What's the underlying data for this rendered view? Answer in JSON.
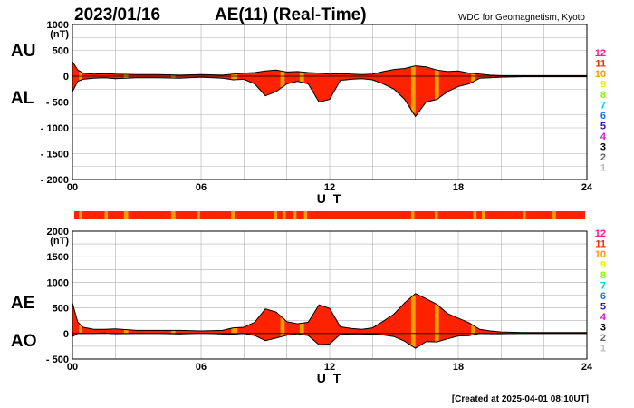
{
  "header": {
    "date": "2023/01/16",
    "title": "AE(11) (Real-Time)",
    "source": "WDC for Geomagnetism, Kyoto"
  },
  "footer": {
    "created": "[Created at 2025-04-01 08:10UT]"
  },
  "station_scale": {
    "labels": [
      "12",
      "11",
      "10",
      "9",
      "8",
      "7",
      "6",
      "5",
      "4",
      "3",
      "2",
      "1"
    ],
    "colors": [
      "#ff1493",
      "#ff2a00",
      "#ff9900",
      "#eeee00",
      "#7cfc00",
      "#00ced1",
      "#1e6fff",
      "#3311cc",
      "#cc22cc",
      "#000000",
      "#666666",
      "#bbbbbb"
    ]
  },
  "colors": {
    "fill_11": "#ff2200",
    "fill_10": "#f5a000",
    "line": "#000000",
    "grid": "#b0b0b0",
    "strip": "#ff2200"
  },
  "chart_data": [
    {
      "type": "area",
      "id": "au-al",
      "series_labels": [
        "AU",
        "AL"
      ],
      "xlabel": "U T",
      "ylabel": "(nT)",
      "xlim": [
        0,
        24
      ],
      "ylim": [
        -2000,
        1000
      ],
      "x_ticks": [
        "00",
        "06",
        "12",
        "18",
        "24"
      ],
      "x_tick_values": [
        0,
        6,
        12,
        18,
        24
      ],
      "y_ticks": [
        1000,
        500,
        0,
        -500,
        -1000,
        -1500,
        -2000
      ],
      "y_tick_labels": [
        "1000",
        "500",
        "0",
        "- 500",
        "- 1000",
        "- 1500",
        "- 2000"
      ],
      "grid": true,
      "x": [
        0,
        0.25,
        0.5,
        1,
        1.5,
        2,
        3,
        4,
        5,
        6,
        7,
        7.5,
        8,
        8.5,
        9,
        9.5,
        10,
        10.5,
        11,
        11.5,
        12,
        12.5,
        13,
        13.5,
        14,
        14.5,
        15,
        15.5,
        16,
        16.5,
        17,
        17.5,
        18,
        18.5,
        19,
        19.5,
        20,
        21,
        22,
        23,
        24
      ],
      "series": [
        {
          "name": "AU",
          "values": [
            280,
            120,
            60,
            40,
            50,
            40,
            30,
            30,
            20,
            30,
            20,
            40,
            60,
            70,
            100,
            120,
            80,
            90,
            70,
            60,
            40,
            50,
            40,
            30,
            40,
            90,
            130,
            150,
            200,
            180,
            120,
            90,
            100,
            60,
            40,
            20,
            10,
            10,
            10,
            10,
            10
          ]
        },
        {
          "name": "AL",
          "values": [
            -300,
            -100,
            -60,
            -40,
            -30,
            -50,
            -30,
            -30,
            -40,
            -20,
            -40,
            -70,
            -60,
            -150,
            -380,
            -300,
            -150,
            -100,
            -150,
            -500,
            -450,
            -80,
            -60,
            -50,
            -70,
            -150,
            -250,
            -450,
            -780,
            -500,
            -450,
            -300,
            -200,
            -150,
            -40,
            -30,
            -20,
            -10,
            -10,
            -10,
            -10
          ]
        }
      ],
      "intensity_segments": [
        {
          "start": 0.3,
          "end": 0.45,
          "level": 10
        },
        {
          "start": 2.4,
          "end": 2.6,
          "level": 10
        },
        {
          "start": 4.6,
          "end": 4.8,
          "level": 10
        },
        {
          "start": 7.4,
          "end": 7.7,
          "level": 10
        },
        {
          "start": 9.7,
          "end": 9.9,
          "level": 10
        },
        {
          "start": 10.6,
          "end": 10.8,
          "level": 10
        },
        {
          "start": 15.8,
          "end": 16.0,
          "level": 10
        },
        {
          "start": 16.9,
          "end": 17.1,
          "level": 10
        },
        {
          "start": 18.6,
          "end": 18.8,
          "level": 10
        }
      ]
    },
    {
      "type": "area",
      "id": "ae-ao",
      "series_labels": [
        "AE",
        "AO"
      ],
      "xlabel": "U T",
      "ylabel": "(nT)",
      "xlim": [
        0,
        24
      ],
      "ylim": [
        -500,
        2000
      ],
      "x_ticks": [
        "00",
        "06",
        "12",
        "18",
        "24"
      ],
      "x_tick_values": [
        0,
        6,
        12,
        18,
        24
      ],
      "y_ticks": [
        2000,
        1500,
        1000,
        500,
        0,
        -500
      ],
      "y_tick_labels": [
        "2000",
        "1500",
        "1000",
        "500",
        "0",
        "- 500"
      ],
      "grid": true,
      "x": [
        0,
        0.25,
        0.5,
        1,
        1.5,
        2,
        3,
        4,
        5,
        6,
        7,
        7.5,
        8,
        8.5,
        9,
        9.5,
        10,
        10.5,
        11,
        11.5,
        12,
        12.5,
        13,
        13.5,
        14,
        14.5,
        15,
        15.5,
        16,
        16.5,
        17,
        17.5,
        18,
        18.5,
        19,
        19.5,
        20,
        21,
        22,
        23,
        24
      ],
      "series": [
        {
          "name": "AE",
          "values": [
            600,
            220,
            120,
            80,
            80,
            90,
            60,
            60,
            60,
            50,
            60,
            110,
            120,
            220,
            480,
            420,
            230,
            190,
            220,
            560,
            490,
            130,
            100,
            80,
            110,
            240,
            380,
            600,
            780,
            680,
            570,
            390,
            300,
            210,
            80,
            50,
            30,
            20,
            20,
            20,
            20
          ]
        },
        {
          "name": "AO",
          "values": [
            -60,
            0,
            0,
            0,
            10,
            -5,
            0,
            0,
            -10,
            5,
            -10,
            -15,
            0,
            -40,
            -140,
            -90,
            -35,
            -5,
            -40,
            -220,
            -205,
            -15,
            -10,
            -10,
            -15,
            -30,
            -60,
            -150,
            -290,
            -160,
            -165,
            -105,
            -50,
            -45,
            0,
            -5,
            -5,
            0,
            0,
            0,
            0
          ]
        }
      ],
      "intensity_segments": [
        {
          "start": 0.3,
          "end": 0.45,
          "level": 10
        },
        {
          "start": 2.4,
          "end": 2.6,
          "level": 10
        },
        {
          "start": 4.6,
          "end": 4.8,
          "level": 10
        },
        {
          "start": 7.4,
          "end": 7.7,
          "level": 10
        },
        {
          "start": 9.7,
          "end": 9.9,
          "level": 10
        },
        {
          "start": 10.6,
          "end": 10.8,
          "level": 10
        },
        {
          "start": 15.8,
          "end": 16.0,
          "level": 10
        },
        {
          "start": 16.9,
          "end": 17.1,
          "level": 10
        },
        {
          "start": 18.6,
          "end": 18.8,
          "level": 10
        }
      ]
    }
  ],
  "status_strip": {
    "segments": [
      {
        "start": 0.3,
        "end": 0.45,
        "level": 10
      },
      {
        "start": 1.5,
        "end": 1.65,
        "level": 10
      },
      {
        "start": 2.4,
        "end": 2.6,
        "level": 10
      },
      {
        "start": 4.6,
        "end": 4.8,
        "level": 10
      },
      {
        "start": 5.8,
        "end": 5.95,
        "level": 10
      },
      {
        "start": 7.4,
        "end": 7.6,
        "level": 10
      },
      {
        "start": 9.4,
        "end": 9.55,
        "level": 10
      },
      {
        "start": 9.8,
        "end": 9.95,
        "level": 10
      },
      {
        "start": 10.3,
        "end": 10.45,
        "level": 10
      },
      {
        "start": 10.8,
        "end": 10.95,
        "level": 10
      },
      {
        "start": 15.8,
        "end": 15.95,
        "level": 10
      },
      {
        "start": 16.9,
        "end": 17.05,
        "level": 10
      },
      {
        "start": 18.7,
        "end": 18.85,
        "level": 10
      },
      {
        "start": 19.1,
        "end": 19.25,
        "level": 10
      },
      {
        "start": 21.0,
        "end": 21.15,
        "level": 10
      },
      {
        "start": 22.4,
        "end": 22.55,
        "level": 10
      }
    ]
  }
}
